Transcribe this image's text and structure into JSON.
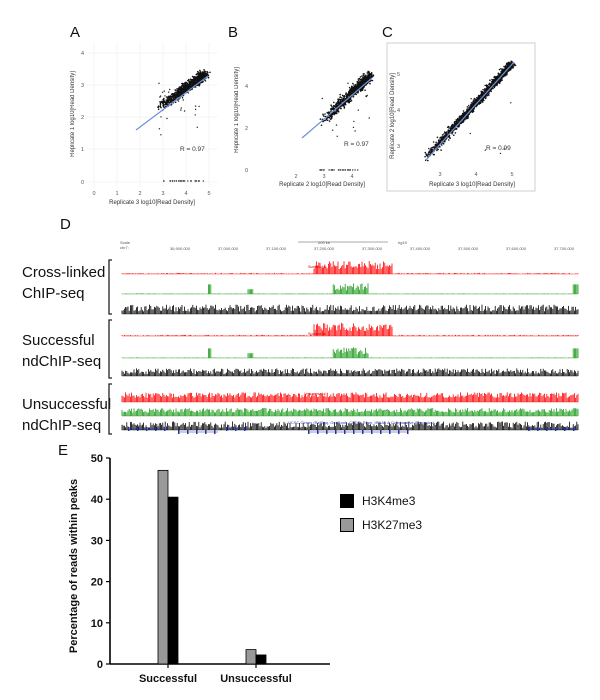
{
  "panels": {
    "A": "A",
    "B": "B",
    "C": "C",
    "D": "D",
    "E": "E"
  },
  "scatter_plots": [
    {
      "id": "A",
      "xlabel": "Replicate 3 log10[Read Density]",
      "ylabel": "Replicate 1 log10[Read Density]",
      "r_label": "R = 0.97",
      "x_ticks": [
        "0",
        "1",
        "2",
        "3",
        "4",
        "5"
      ],
      "y_ticks": [
        "0",
        "1",
        "2",
        "3",
        "4"
      ]
    },
    {
      "id": "B",
      "xlabel": "Replicate 2 log10[Read Density]",
      "ylabel": "Replicate 1 log10[Read Density]",
      "r_label": "R = 0.97",
      "x_ticks": [
        "2",
        "3",
        "4"
      ],
      "y_ticks": [
        "0",
        "2",
        "4"
      ]
    },
    {
      "id": "C",
      "xlabel": "Replicate 3 log10[Read Density]",
      "ylabel": "Replicate 2 log10[Read Density]",
      "r_label": "R = 0.99",
      "x_ticks": [
        "3",
        "4",
        "5"
      ],
      "y_ticks": [
        "3",
        "4",
        "5"
      ]
    }
  ],
  "tracks": {
    "groups": [
      {
        "label_line1": "Cross-linked",
        "label_line2": "ChIP-seq"
      },
      {
        "label_line1": "Successful",
        "label_line2": "ndChIP-seq"
      },
      {
        "label_line1": "Unsuccessful",
        "label_line2": "ndChIP-seq"
      }
    ],
    "scale_label": "Scale",
    "chrom_label": "chr7:",
    "scale_bar": "200 kb",
    "genome_label": "hg19",
    "coordinates": [
      "36,900,000",
      "37,000,000",
      "37,100,000",
      "37,200,000",
      "37,300,000",
      "37,400,000",
      "37,500,000",
      "37,600,000",
      "37,700,000"
    ],
    "region_labels": [
      "Successful",
      "Successful",
      "Unsuccessful"
    ],
    "genes_label": "UCSC Genes (RefSeq, GenBank, CCDS, Rfam, tRNAs & Comparative Genomics)",
    "colors": {
      "h3k27me3": "#ff0000",
      "h3k4me3": "#1a9a1a",
      "input": "#000000"
    }
  },
  "chart_data": {
    "type": "bar",
    "categories": [
      "Successful",
      "Unsuccessful"
    ],
    "series": [
      {
        "name": "H3K27me3",
        "values": [
          47,
          3.5
        ],
        "color": "#999999"
      },
      {
        "name": "H3K4me3",
        "values": [
          40.5,
          2.2
        ],
        "color": "#000000"
      }
    ],
    "ylabel": "Percentage of reads within peaks",
    "ylim": [
      0,
      50
    ],
    "yticks": [
      0,
      10,
      20,
      30,
      40,
      50
    ],
    "legend_position": "right"
  }
}
